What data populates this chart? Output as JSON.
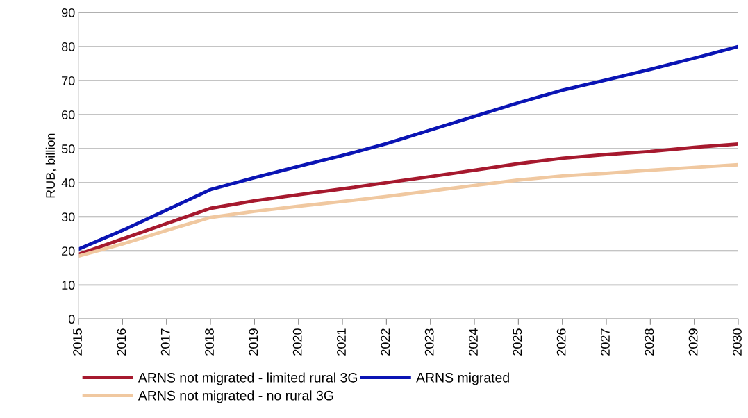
{
  "chart_data": {
    "type": "line",
    "ylabel": "RUB, billion",
    "x": [
      2015,
      2016,
      2017,
      2018,
      2019,
      2020,
      2021,
      2022,
      2023,
      2024,
      2025,
      2026,
      2027,
      2028,
      2029,
      2030
    ],
    "series": [
      {
        "name": "ARNS not migrated - limited rural 3G",
        "color": "#a6192e",
        "values": [
          19,
          23.5,
          28,
          32.5,
          34.7,
          36.5,
          38.2,
          40,
          41.8,
          43.7,
          45.6,
          47.2,
          48.3,
          49.2,
          50.4,
          51.4
        ]
      },
      {
        "name": "ARNS not migrated - no rural 3G",
        "color": "#f0c8a0",
        "values": [
          18.5,
          22,
          26,
          29.8,
          31.6,
          33.1,
          34.5,
          36,
          37.6,
          39.2,
          40.8,
          42,
          42.8,
          43.7,
          44.5,
          45.3
        ]
      },
      {
        "name": "ARNS migrated",
        "color": "#0a14b4",
        "values": [
          20.5,
          26,
          32,
          38,
          41.5,
          44.8,
          48,
          51.5,
          55.5,
          59.5,
          63.5,
          67.2,
          70.2,
          73.3,
          76.6,
          80
        ]
      }
    ],
    "xlim": [
      2015,
      2030
    ],
    "xticks": [
      2015,
      2016,
      2017,
      2018,
      2019,
      2020,
      2021,
      2022,
      2023,
      2024,
      2025,
      2026,
      2027,
      2028,
      2029,
      2030
    ],
    "ylim": [
      0,
      90
    ],
    "yticks": [
      0,
      10,
      20,
      30,
      40,
      50,
      60,
      70,
      80,
      90
    ],
    "grid": "y",
    "legend": "bottom",
    "marker": "none",
    "line_style": "solid"
  }
}
